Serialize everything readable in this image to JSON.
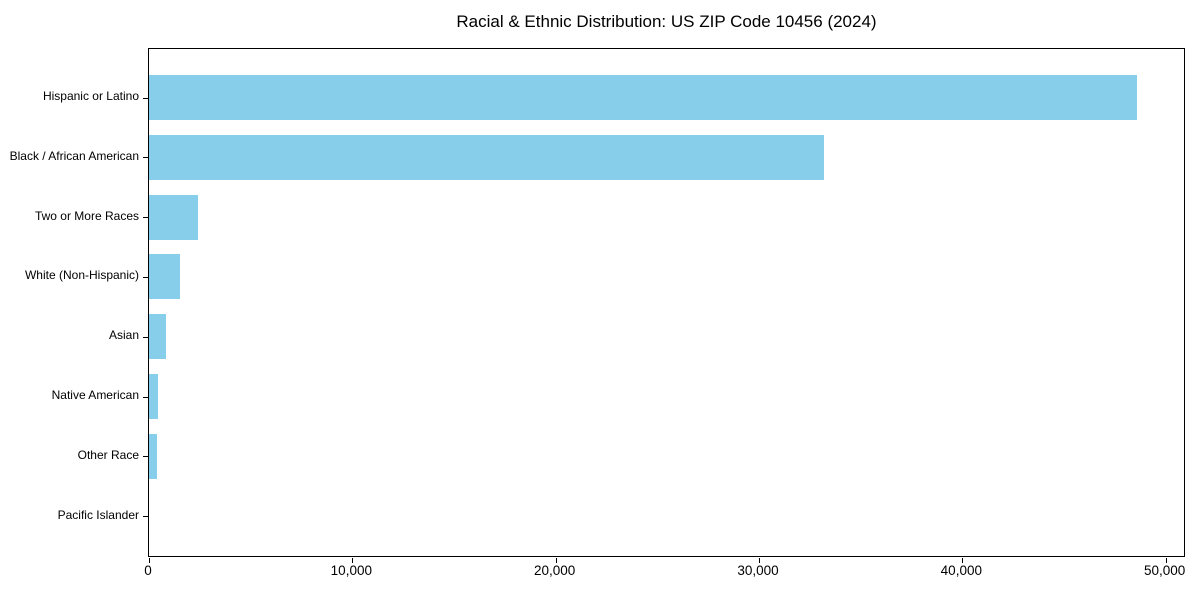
{
  "chart_data": {
    "type": "bar",
    "orientation": "horizontal",
    "title": "Racial & Ethnic Distribution: US ZIP Code 10456 (2024)",
    "categories": [
      "Hispanic or Latino",
      "Black / African American",
      "Two or More Races",
      "White (Non-Hispanic)",
      "Asian",
      "Native American",
      "Other Race",
      "Pacific Islander"
    ],
    "values": [
      48600,
      33200,
      2400,
      1540,
      850,
      460,
      410,
      0
    ],
    "xlabel": "",
    "ylabel": "",
    "xlim": [
      0,
      51000
    ],
    "x_ticks": [
      0,
      10000,
      20000,
      30000,
      40000,
      50000
    ],
    "x_tick_labels": [
      "0",
      "10,000",
      "20,000",
      "30,000",
      "40,000",
      "50,000"
    ],
    "bar_color": "#87CEEB",
    "axis_color": "#000000",
    "grid": false,
    "legend_position": "none"
  }
}
